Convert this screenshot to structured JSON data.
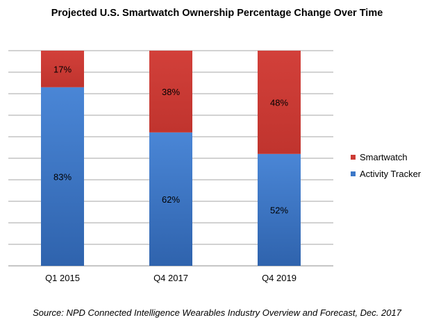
{
  "chart_data": {
    "type": "bar",
    "stacked": true,
    "title": "Projected U.S. Smartwatch Ownership Percentage Change Over Time",
    "categories": [
      "Q1 2015",
      "Q4 2017",
      "Q4 2019"
    ],
    "series": [
      {
        "name": "Activity Tracker",
        "color": "#3c78c8",
        "values": [
          83,
          62,
          52
        ],
        "labels": [
          "83%",
          "62%",
          "52%"
        ]
      },
      {
        "name": "Smartwatch",
        "color": "#cc3b35",
        "values": [
          17,
          38,
          48
        ],
        "labels": [
          "17%",
          "38%",
          "48%"
        ]
      }
    ],
    "ylim": [
      0,
      100
    ],
    "gridlines": 10,
    "legend_position": "right",
    "source": "Source: NPD Connected Intelligence Wearables Industry Overview and Forecast, Dec. 2017"
  }
}
